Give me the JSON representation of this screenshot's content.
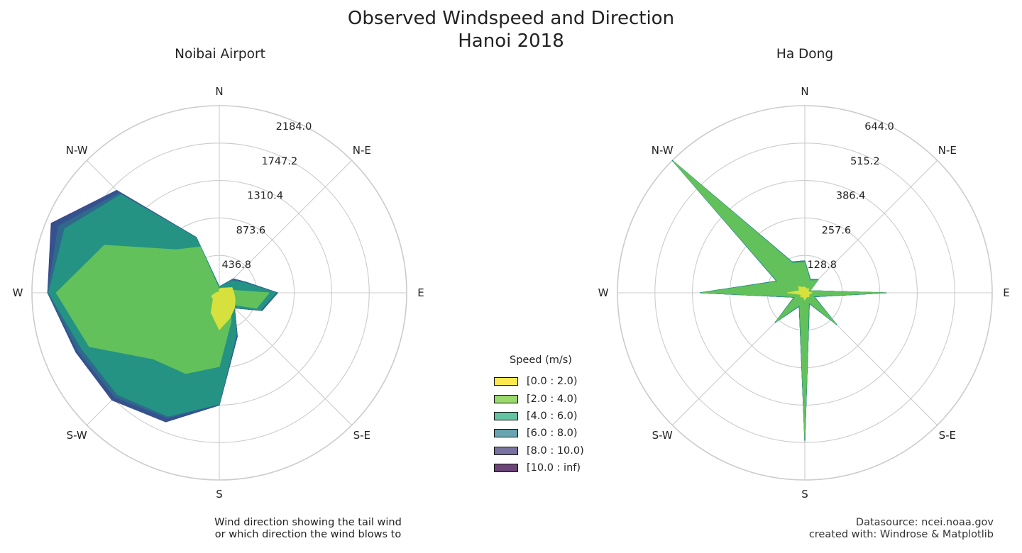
{
  "titles": {
    "line1": "Observed Windspeed and Direction",
    "line2": "Hanoi 2018"
  },
  "legend": {
    "title": "Speed (m/s)",
    "items": [
      {
        "label": "[0.0 : 2.0)",
        "color": "#fde94f"
      },
      {
        "label": "[2.0 : 4.0)",
        "color": "#9ad96b"
      },
      {
        "label": "[4.0 : 6.0)",
        "color": "#63c3a3"
      },
      {
        "label": "[6.0 : 8.0)",
        "color": "#67a3b0"
      },
      {
        "label": "[8.0 : 10.0)",
        "color": "#77729f"
      },
      {
        "label": "[10.0 : inf)",
        "color": "#6b4478"
      }
    ]
  },
  "notes": {
    "left_line1": "Wind direction showing the tail wind",
    "left_line2": "or which direction the wind blows to",
    "right_line1": "Datasource: ncei.noaa.gov",
    "right_line2": "created with: Windrose & Matplotlib"
  },
  "chart_data": [
    {
      "type": "area",
      "projection": "polar",
      "title": "Noibai Airport",
      "directions": [
        "N",
        "N-E",
        "E",
        "S-E",
        "S",
        "S-W",
        "W",
        "N-W"
      ],
      "sectors_deg": [
        0,
        22.5,
        45,
        67.5,
        90,
        112.5,
        135,
        157.5,
        180,
        202.5,
        225,
        247.5,
        270,
        292.5,
        315,
        337.5
      ],
      "rlim": [
        0,
        2184.0
      ],
      "radial_ticks": [
        436.8,
        873.6,
        1310.4,
        1747.2,
        2184.0
      ],
      "grid": true,
      "series_colors": [
        "#d7e13d",
        "#63c15c",
        "#249384",
        "#2f6a8c",
        "#36528e",
        "#3c3a7e"
      ],
      "series": [
        {
          "name": "[0.0 : 2.0)",
          "values": [
            45,
            60,
            80,
            160,
            170,
            200,
            250,
            320,
            430,
            250,
            100,
            100,
            40,
            20,
            10,
            10
          ]
        },
        {
          "name": "[2.0 : 4.0)",
          "values": [
            40,
            40,
            70,
            90,
            580,
            470,
            190,
            360,
            860,
            1020,
            1090,
            1640,
            1900,
            1450,
            710,
            580
          ]
        },
        {
          "name": "[4.0 : 6.0)",
          "values": [
            70,
            90,
            200,
            310,
            660,
            520,
            240,
            520,
            1300,
            1560,
            1680,
            1730,
            1990,
            1950,
            1620,
            690
          ]
        },
        {
          "name": "[6.0 : 8.0)",
          "values": [
            70,
            100,
            220,
            330,
            680,
            540,
            250,
            540,
            1300,
            1580,
            1720,
            1780,
            2000,
            2030,
            1650,
            700
          ]
        },
        {
          "name": "[8.0 : 10.0)",
          "values": [
            70,
            100,
            230,
            330,
            680,
            540,
            250,
            550,
            1310,
            1630,
            1770,
            1810,
            2000,
            2110,
            1690,
            700
          ]
        },
        {
          "name": "[10.0 : inf)",
          "values": [
            70,
            100,
            230,
            330,
            680,
            540,
            250,
            550,
            1310,
            1630,
            1770,
            1810,
            2000,
            2120,
            1690,
            700
          ]
        }
      ]
    },
    {
      "type": "area",
      "projection": "polar",
      "title": "Ha Dong",
      "directions": [
        "N",
        "N-E",
        "E",
        "S-E",
        "S",
        "S-W",
        "W",
        "N-W"
      ],
      "sectors_deg": [
        0,
        22.5,
        45,
        67.5,
        90,
        112.5,
        135,
        157.5,
        180,
        202.5,
        225,
        247.5,
        270,
        292.5,
        315,
        337.5
      ],
      "rlim": [
        0,
        644.0
      ],
      "radial_ticks": [
        128.8,
        257.6,
        386.4,
        515.2,
        644.0
      ],
      "grid": true,
      "series_colors": [
        "#d7e13d",
        "#63c15c",
        "#249384",
        "#2f6a8c",
        "#36528e",
        "#3c3a7e"
      ],
      "series": [
        {
          "name": "[0.0 : 2.0)",
          "values": [
            20,
            15,
            20,
            12,
            25,
            15,
            20,
            15,
            25,
            15,
            20,
            15,
            60,
            20,
            30,
            20
          ]
        },
        {
          "name": "[2.0 : 4.0)",
          "values": [
            105,
            45,
            60,
            20,
            275,
            30,
            150,
            35,
            500,
            45,
            140,
            35,
            355,
            100,
            640,
            110
          ]
        },
        {
          "name": "[4.0 : 6.0)",
          "values": [
            110,
            50,
            65,
            20,
            280,
            35,
            155,
            40,
            510,
            50,
            145,
            40,
            360,
            105,
            644,
            115
          ]
        },
        {
          "name": "[6.0 : 8.0)",
          "values": [
            110,
            50,
            65,
            20,
            280,
            35,
            155,
            40,
            510,
            50,
            145,
            40,
            360,
            105,
            644,
            115
          ]
        },
        {
          "name": "[8.0 : 10.0)",
          "values": [
            110,
            50,
            65,
            20,
            280,
            35,
            155,
            40,
            510,
            50,
            145,
            40,
            360,
            105,
            644,
            115
          ]
        },
        {
          "name": "[10.0 : inf)",
          "values": [
            110,
            50,
            65,
            20,
            280,
            35,
            155,
            40,
            510,
            50,
            145,
            40,
            360,
            105,
            644,
            115
          ]
        }
      ]
    }
  ]
}
